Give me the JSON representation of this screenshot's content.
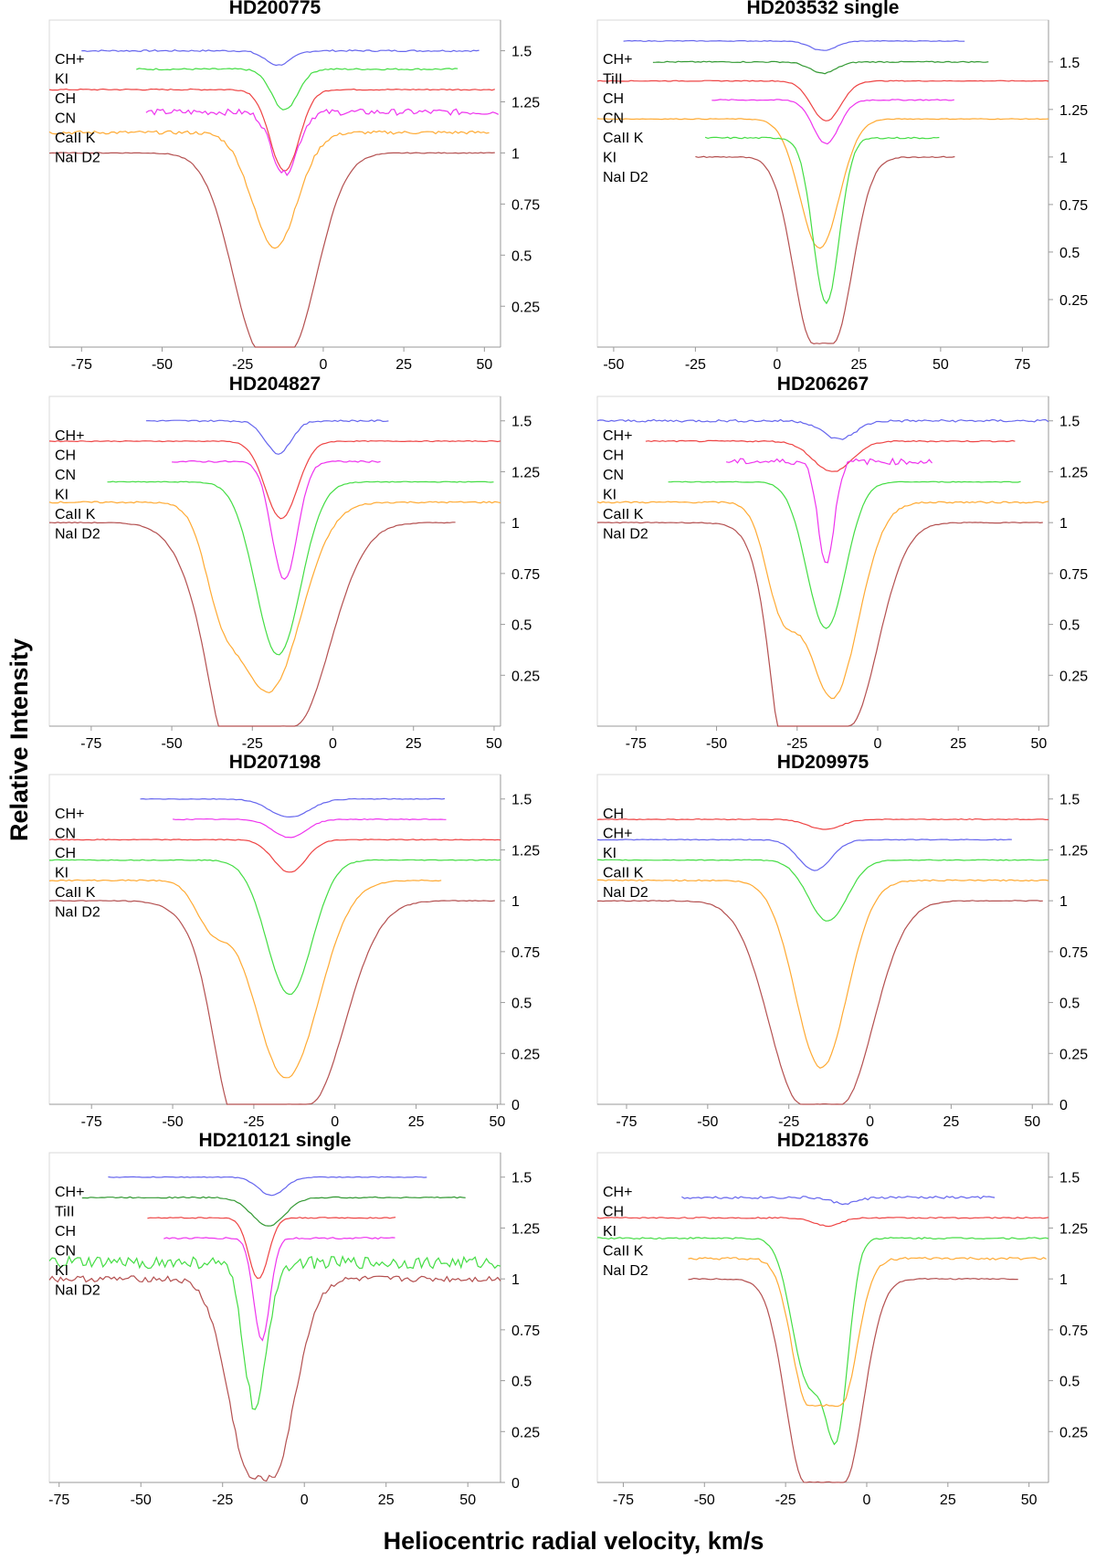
{
  "figure": {
    "ylabel": "Relative Intensity",
    "xlabel": "Heliocentric radial velocity, km/s"
  },
  "chart_data": [
    {
      "type": "line",
      "title": "HD200775",
      "xlim": [
        -85,
        55
      ],
      "ylim": [
        0.05,
        1.65
      ],
      "xticks": [
        -75,
        -50,
        -25,
        0,
        25,
        50
      ],
      "yticks": [
        0.25,
        0.5,
        0.75,
        1,
        1.25,
        1.5
      ],
      "ytick_labels": [
        "0.25",
        "0.5",
        "0.75",
        "1",
        "1.25",
        "1.5"
      ],
      "labels": [
        "CH+",
        "KI",
        "CH",
        "CN",
        "CaII K",
        "NaI D2"
      ],
      "series": [
        {
          "color": "#6666ee",
          "base": 1.5,
          "depth": 0.07,
          "center": -14,
          "width": 4,
          "range": [
            -75,
            49
          ],
          "noise": 0.004
        },
        {
          "color": "#44dd44",
          "base": 1.41,
          "depth": 0.2,
          "center": -12,
          "width": 4,
          "range": [
            -58,
            42
          ],
          "noise": 0.004
        },
        {
          "color": "#ee4444",
          "base": 1.31,
          "depth": 0.4,
          "center": -12,
          "width": 4.5,
          "range": [
            -85,
            54
          ],
          "noise": 0.003
        },
        {
          "color": "#ee33ee",
          "base": 1.2,
          "depth": 0.3,
          "center": -12,
          "width": 4,
          "range": [
            -55,
            55
          ],
          "noise": 0.015
        },
        {
          "color": "#ffaa33",
          "base": 1.1,
          "depth": 0.56,
          "center": -15,
          "width": 7,
          "range": [
            -85,
            52
          ],
          "noise": 0.008
        },
        {
          "color": "#b45050",
          "base": 1.0,
          "depth": 0.98,
          "center": -15,
          "width": 9,
          "range": [
            -85,
            54
          ],
          "noise": 0.002,
          "flat": 4
        }
      ]
    },
    {
      "type": "line",
      "title": "HD203532 single",
      "xlim": [
        -55,
        83
      ],
      "ylim": [
        0.0,
        1.72
      ],
      "xticks": [
        -50,
        -25,
        0,
        25,
        50,
        75
      ],
      "yticks": [
        0.25,
        0.5,
        0.75,
        1,
        1.25,
        1.5
      ],
      "ytick_labels": [
        "0.25",
        "0.5",
        "0.75",
        "1",
        "1.25",
        "1.5"
      ],
      "labels": [
        "CH+",
        "TiII",
        "CH",
        "CN",
        "CaII K",
        "KI",
        "NaI D2"
      ],
      "series": [
        {
          "color": "#6666ee",
          "base": 1.61,
          "depth": 0.05,
          "center": 14,
          "width": 4,
          "range": [
            -47,
            58
          ],
          "noise": 0.002
        },
        {
          "color": "#339933",
          "base": 1.5,
          "depth": 0.06,
          "center": 14,
          "width": 4,
          "range": [
            -38,
            65
          ],
          "noise": 0.003
        },
        {
          "color": "#ee4444",
          "base": 1.4,
          "depth": 0.21,
          "center": 15,
          "width": 4.5,
          "range": [
            -55,
            83
          ],
          "noise": 0.002
        },
        {
          "color": "#ee33ee",
          "base": 1.3,
          "depth": 0.23,
          "center": 15,
          "width": 4,
          "range": [
            -20,
            55
          ],
          "noise": 0.003
        },
        {
          "color": "#ffaa33",
          "base": 1.2,
          "depth": 0.68,
          "center": 13,
          "width": 6,
          "range": [
            -55,
            83
          ],
          "noise": 0.002
        },
        {
          "color": "#44dd44",
          "base": 1.1,
          "depth": 0.87,
          "center": 15,
          "width": 4,
          "range": [
            -22,
            50
          ],
          "noise": 0.004
        },
        {
          "color": "#b45050",
          "base": 1.0,
          "depth": 0.98,
          "center": 14,
          "width": 6,
          "range": [
            -25,
            55
          ],
          "noise": 0.003,
          "flat": 3
        }
      ]
    },
    {
      "type": "line",
      "title": "HD204827",
      "xlim": [
        -88,
        52
      ],
      "ylim": [
        0.0,
        1.62
      ],
      "xticks": [
        -75,
        -50,
        -25,
        0,
        25,
        50
      ],
      "yticks": [
        0.25,
        0.5,
        0.75,
        1,
        1.25,
        1.5
      ],
      "ytick_labels": [
        "0.25",
        "0.5",
        "0.75",
        "1",
        "1.25",
        "1.5"
      ],
      "labels": [
        "CH+",
        "CH",
        "CN",
        "KI",
        "CaII K",
        "NaI D2"
      ],
      "series": [
        {
          "color": "#6666ee",
          "base": 1.5,
          "depth": 0.16,
          "center": -17,
          "width": 4,
          "range": [
            -58,
            18
          ],
          "noise": 0.004
        },
        {
          "color": "#ee4444",
          "base": 1.4,
          "depth": 0.38,
          "center": -16,
          "width": 5,
          "range": [
            -88,
            52
          ],
          "noise": 0.002
        },
        {
          "color": "#ee33ee",
          "base": 1.3,
          "depth": 0.58,
          "center": -15,
          "width": 4,
          "range": [
            -50,
            15
          ],
          "noise": 0.004
        },
        {
          "color": "#44dd44",
          "base": 1.2,
          "depth": 0.85,
          "center": -17,
          "width": 7,
          "range": [
            -70,
            50
          ],
          "noise": 0.002
        },
        {
          "color": "#ffaa33",
          "base": 1.1,
          "depth": 0.93,
          "center": -20,
          "width": 10,
          "range": [
            -88,
            52
          ],
          "noise": 0.004,
          "shoulder": [
            -35,
            0.3
          ]
        },
        {
          "color": "#b45050",
          "base": 1.0,
          "depth": 1.0,
          "center": -20,
          "width": 11,
          "range": [
            -88,
            38
          ],
          "noise": 0.002,
          "flat": 8,
          "shoulder": [
            -33,
            0.25
          ]
        }
      ]
    },
    {
      "type": "line",
      "title": "HD206267",
      "xlim": [
        -87,
        53
      ],
      "ylim": [
        0.0,
        1.62
      ],
      "xticks": [
        -75,
        -50,
        -25,
        0,
        25,
        50
      ],
      "yticks": [
        0.25,
        0.5,
        0.75,
        1,
        1.25,
        1.5
      ],
      "ytick_labels": [
        "0.25",
        "0.5",
        "0.75",
        "1",
        "1.25",
        "1.5"
      ],
      "labels": [
        "CH+",
        "CH",
        "CN",
        "KI",
        "CaII K",
        "NaI D2"
      ],
      "series": [
        {
          "color": "#6666ee",
          "base": 1.5,
          "depth": 0.09,
          "center": -12,
          "width": 5,
          "range": [
            -87,
            53
          ],
          "noise": 0.006
        },
        {
          "color": "#ee4444",
          "base": 1.4,
          "depth": 0.15,
          "center": -14,
          "width": 6,
          "range": [
            -72,
            43
          ],
          "noise": 0.003
        },
        {
          "color": "#ee33ee",
          "base": 1.3,
          "depth": 0.5,
          "center": -16,
          "width": 2.5,
          "range": [
            -47,
            17
          ],
          "noise": 0.015
        },
        {
          "color": "#44dd44",
          "base": 1.2,
          "depth": 0.72,
          "center": -16,
          "width": 6,
          "range": [
            -65,
            45
          ],
          "noise": 0.002
        },
        {
          "color": "#ffaa33",
          "base": 1.1,
          "depth": 0.96,
          "center": -14,
          "width": 8,
          "range": [
            -87,
            53
          ],
          "noise": 0.004,
          "shoulder": [
            -30,
            0.45
          ]
        },
        {
          "color": "#b45050",
          "base": 1.0,
          "depth": 1.0,
          "center": -15,
          "width": 9,
          "range": [
            -87,
            52
          ],
          "noise": 0.002,
          "flat": 6,
          "shoulder": [
            -28,
            0.6
          ]
        }
      ]
    },
    {
      "type": "line",
      "title": "HD207198",
      "xlim": [
        -88,
        51
      ],
      "ylim": [
        0.0,
        1.62
      ],
      "xticks": [
        -75,
        -50,
        -25,
        0,
        25,
        50
      ],
      "yticks": [
        0,
        0.25,
        0.5,
        0.75,
        1,
        1.25,
        1.5
      ],
      "ytick_labels": [
        "0",
        "0.25",
        "0.5",
        "0.75",
        "1",
        "1.25",
        "1.5"
      ],
      "labels": [
        "CH+",
        "CN",
        "CH",
        "KI",
        "CaII K",
        "NaI D2"
      ],
      "series": [
        {
          "color": "#6666ee",
          "base": 1.5,
          "depth": 0.09,
          "center": -14,
          "width": 6,
          "range": [
            -60,
            34
          ],
          "noise": 0.002
        },
        {
          "color": "#ee33ee",
          "base": 1.4,
          "depth": 0.09,
          "center": -14,
          "width": 5,
          "range": [
            -50,
            35
          ],
          "noise": 0.002
        },
        {
          "color": "#ee4444",
          "base": 1.3,
          "depth": 0.16,
          "center": -14,
          "width": 5,
          "range": [
            -88,
            51
          ],
          "noise": 0.002
        },
        {
          "color": "#44dd44",
          "base": 1.2,
          "depth": 0.66,
          "center": -14,
          "width": 7,
          "range": [
            -88,
            51
          ],
          "noise": 0.002
        },
        {
          "color": "#ffaa33",
          "base": 1.1,
          "depth": 0.97,
          "center": -15,
          "width": 10,
          "range": [
            -88,
            33
          ],
          "noise": 0.003,
          "shoulder": [
            -38,
            0.2
          ]
        },
        {
          "color": "#b45050",
          "base": 1.0,
          "depth": 1.0,
          "center": -16,
          "width": 11,
          "range": [
            -88,
            50
          ],
          "noise": 0.002,
          "flat": 8,
          "shoulder": [
            -33,
            0.3
          ]
        }
      ]
    },
    {
      "type": "line",
      "title": "HD209975",
      "xlim": [
        -84,
        55
      ],
      "ylim": [
        0.0,
        1.62
      ],
      "xticks": [
        -75,
        -50,
        -25,
        0,
        25,
        50
      ],
      "yticks": [
        0,
        0.25,
        0.5,
        0.75,
        1,
        1.25,
        1.5
      ],
      "ytick_labels": [
        "0",
        "0.25",
        "0.5",
        "0.75",
        "1",
        "1.25",
        "1.5"
      ],
      "labels": [
        "CH",
        "CH+",
        "KI",
        "CaII K",
        "NaI D2"
      ],
      "series": [
        {
          "color": "#ee4444",
          "base": 1.4,
          "depth": 0.05,
          "center": -14,
          "width": 5,
          "range": [
            -84,
            55
          ],
          "noise": 0.002
        },
        {
          "color": "#6666ee",
          "base": 1.3,
          "depth": 0.15,
          "center": -17,
          "width": 5,
          "range": [
            -84,
            44
          ],
          "noise": 0.002
        },
        {
          "color": "#44dd44",
          "base": 1.2,
          "depth": 0.3,
          "center": -13,
          "width": 6,
          "range": [
            -84,
            55
          ],
          "noise": 0.002
        },
        {
          "color": "#ffaa33",
          "base": 1.1,
          "depth": 0.92,
          "center": -15,
          "width": 8,
          "range": [
            -84,
            55
          ],
          "noise": 0.003
        },
        {
          "color": "#b45050",
          "base": 1.0,
          "depth": 1.0,
          "center": -15,
          "width": 10,
          "range": [
            -84,
            54
          ],
          "noise": 0.002,
          "flat": 6
        }
      ]
    },
    {
      "type": "line",
      "title": "HD210121 single",
      "xlim": [
        -78,
        60
      ],
      "ylim": [
        0.0,
        1.62
      ],
      "xticks": [
        -75,
        -50,
        -25,
        0,
        25,
        50
      ],
      "yticks": [
        0,
        0.25,
        0.5,
        0.75,
        1,
        1.25,
        1.5
      ],
      "ytick_labels": [
        "0",
        "0.25",
        "0.5",
        "0.75",
        "1",
        "1.25",
        "1.5"
      ],
      "labels": [
        "CH+",
        "TiII",
        "CH",
        "CN",
        "KI",
        "NaI D2"
      ],
      "series": [
        {
          "color": "#6666ee",
          "base": 1.5,
          "depth": 0.09,
          "center": -10,
          "width": 4,
          "range": [
            -60,
            38
          ],
          "noise": 0.002
        },
        {
          "color": "#339933",
          "base": 1.4,
          "depth": 0.14,
          "center": -11,
          "width": 5,
          "range": [
            -68,
            50
          ],
          "noise": 0.003
        },
        {
          "color": "#ee4444",
          "base": 1.3,
          "depth": 0.3,
          "center": -14,
          "width": 3,
          "range": [
            -48,
            28
          ],
          "noise": 0.003
        },
        {
          "color": "#ee33ee",
          "base": 1.2,
          "depth": 0.5,
          "center": -13,
          "width": 2.5,
          "range": [
            -43,
            28
          ],
          "noise": 0.004
        },
        {
          "color": "#44dd44",
          "base": 1.08,
          "depth": 0.72,
          "center": -15,
          "width": 3.5,
          "range": [
            -78,
            60
          ],
          "noise": 0.03
        },
        {
          "color": "#b45050",
          "base": 1.0,
          "depth": 0.98,
          "center": -13,
          "width": 7,
          "range": [
            -78,
            60
          ],
          "noise": 0.015,
          "flat": 3
        }
      ]
    },
    {
      "type": "line",
      "title": "HD218376",
      "xlim": [
        -83,
        56
      ],
      "ylim": [
        0.0,
        1.62
      ],
      "xticks": [
        -75,
        -50,
        -25,
        0,
        25,
        50
      ],
      "yticks": [
        0.25,
        0.5,
        0.75,
        1,
        1.25,
        1.5
      ],
      "ytick_labels": [
        "0.25",
        "0.5",
        "0.75",
        "1",
        "1.25",
        "1.5"
      ],
      "labels": [
        "CH+",
        "CH",
        "KI",
        "CaII K",
        "NaI D2"
      ],
      "series": [
        {
          "color": "#6666ee",
          "base": 1.4,
          "depth": 0.03,
          "center": -7,
          "width": 4,
          "range": [
            -57,
            40
          ],
          "noise": 0.006
        },
        {
          "color": "#ee4444",
          "base": 1.3,
          "depth": 0.04,
          "center": -12,
          "width": 4,
          "range": [
            -83,
            56
          ],
          "noise": 0.003
        },
        {
          "color": "#44dd44",
          "base": 1.2,
          "depth": 0.85,
          "center": -9,
          "width": 3.5,
          "range": [
            -83,
            56
          ],
          "noise": 0.004,
          "shoulder": [
            -18,
            0.7
          ]
        },
        {
          "color": "#ffaa33",
          "base": 1.1,
          "depth": 0.72,
          "center": -13,
          "width": 5,
          "range": [
            -55,
            56
          ],
          "noise": 0.006,
          "flat": 5
        },
        {
          "color": "#b45050",
          "base": 1.0,
          "depth": 1.0,
          "center": -13,
          "width": 6,
          "range": [
            -55,
            47
          ],
          "noise": 0.003,
          "flat": 6
        }
      ]
    }
  ]
}
